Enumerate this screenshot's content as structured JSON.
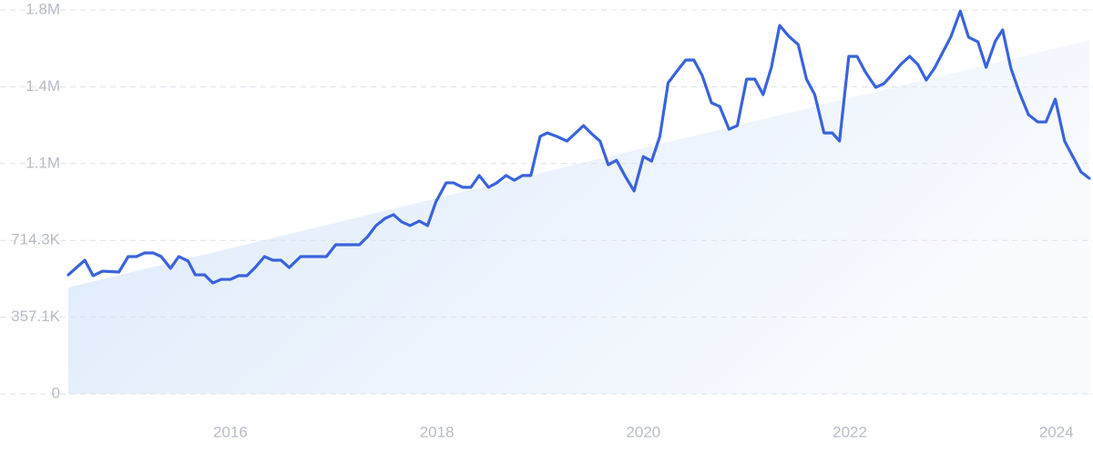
{
  "chart_data": {
    "type": "line",
    "x": [
      2014.43,
      2014.59,
      2014.67,
      2014.76,
      2014.92,
      2015.01,
      2015.09,
      2015.17,
      2015.25,
      2015.33,
      2015.42,
      2015.5,
      2015.59,
      2015.66,
      2015.75,
      2015.83,
      2015.91,
      2016.0,
      2016.08,
      2016.16,
      2016.24,
      2016.33,
      2016.41,
      2016.49,
      2016.57,
      2016.68,
      2016.93,
      2017.02,
      2017.25,
      2017.33,
      2017.41,
      2017.5,
      2017.58,
      2017.66,
      2017.74,
      2017.83,
      2017.91,
      2017.99,
      2018.09,
      2018.16,
      2018.25,
      2018.33,
      2018.41,
      2018.5,
      2018.58,
      2018.67,
      2018.75,
      2018.83,
      2018.91,
      2019.0,
      2019.07,
      2019.16,
      2019.26,
      2019.42,
      2019.5,
      2019.58,
      2019.66,
      2019.74,
      2019.82,
      2019.91,
      2020.0,
      2020.08,
      2020.16,
      2020.24,
      2020.32,
      2020.41,
      2020.49,
      2020.57,
      2020.66,
      2020.74,
      2020.83,
      2020.91,
      2021.0,
      2021.08,
      2021.16,
      2021.24,
      2021.32,
      2021.41,
      2021.5,
      2021.58,
      2021.66,
      2021.75,
      2021.83,
      2021.9,
      2021.99,
      2022.07,
      2022.15,
      2022.25,
      2022.33,
      2022.4,
      2022.5,
      2022.58,
      2022.66,
      2022.74,
      2022.82,
      2022.98,
      2023.07,
      2023.15,
      2023.24,
      2023.32,
      2023.41,
      2023.48,
      2023.56,
      2023.64,
      2023.73,
      2023.82,
      2023.9,
      2023.99,
      2024.08,
      2024.16,
      2024.24,
      2024.32
    ],
    "series": [
      {
        "color": "#3a63dc",
        "values": [
          554000,
          622000,
          550000,
          571000,
          567000,
          639000,
          639000,
          656000,
          656000,
          639000,
          584000,
          639000,
          618000,
          554000,
          554000,
          516000,
          533000,
          533000,
          550000,
          550000,
          588000,
          639000,
          622000,
          622000,
          588000,
          639000,
          639000,
          694000,
          694000,
          732000,
          783000,
          817000,
          834000,
          800000,
          783000,
          804000,
          783000,
          893000,
          982000,
          982000,
          961000,
          961000,
          1016000,
          961000,
          982000,
          1016000,
          994000,
          1016000,
          1016000,
          1198000,
          1214000,
          1198000,
          1176000,
          1248000,
          1210000,
          1176000,
          1066000,
          1087000,
          1016000,
          944000,
          1104000,
          1083000,
          1198000,
          1447000,
          1498000,
          1553000,
          1553000,
          1481000,
          1354000,
          1337000,
          1231000,
          1248000,
          1464000,
          1464000,
          1392000,
          1519000,
          1714000,
          1663000,
          1625000,
          1464000,
          1392000,
          1214000,
          1214000,
          1176000,
          1570000,
          1570000,
          1498000,
          1426000,
          1443000,
          1481000,
          1536000,
          1570000,
          1532000,
          1460000,
          1515000,
          1663000,
          1781000,
          1659000,
          1638000,
          1519000,
          1642000,
          1693000,
          1515000,
          1405000,
          1299000,
          1265000,
          1265000,
          1371000,
          1176000,
          1104000,
          1032000,
          1003000
        ]
      }
    ],
    "trend": {
      "color": "#dce9fb",
      "values": [
        495000,
        1646000
      ]
    },
    "xlim": [
      2014.43,
      2024.32
    ],
    "xticks": [
      2016,
      2018,
      2020,
      2022,
      2024
    ],
    "ylim": [
      0,
      1785714
    ],
    "yticks": [
      0,
      {
        "value": 357143,
        "label": "357.1K"
      },
      {
        "value": 714286,
        "label": "714.3K"
      },
      {
        "value": 1071429,
        "label": "1.1M"
      },
      {
        "value": 1428571,
        "label": "1.4M"
      },
      {
        "value": 1785714,
        "label": "1.8M"
      }
    ],
    "grid": true
  }
}
